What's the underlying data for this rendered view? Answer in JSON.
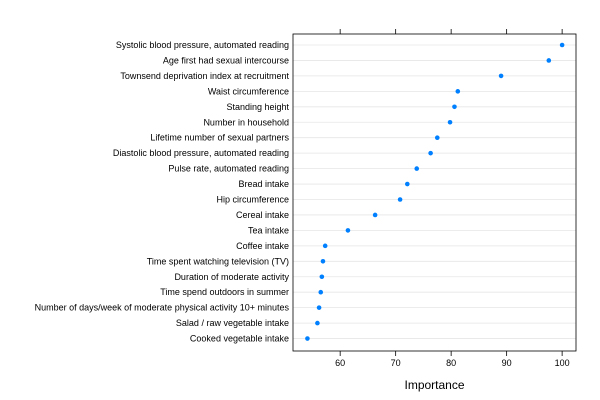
{
  "chart_data": {
    "type": "scatter",
    "xlabel": "Importance",
    "ylabel": "",
    "xlim": [
      51.5,
      102.5
    ],
    "xticks": [
      "60",
      "70",
      "80",
      "90",
      "100"
    ],
    "grid": true,
    "point_color": "#0080ff",
    "grid_color": "#e6e6e6",
    "categories": [
      "Systolic blood pressure, automated reading",
      "Age first had sexual intercourse",
      "Townsend deprivation index at recruitment",
      "Waist circumference",
      "Standing height",
      "Number in household",
      "Lifetime number of sexual partners",
      "Diastolic blood pressure, automated reading",
      "Pulse rate, automated reading",
      "Bread intake",
      "Hip circumference",
      "Cereal intake",
      "Tea intake",
      "Coffee intake",
      "Time spent watching television (TV)",
      "Duration of moderate activity",
      "Time spend outdoors in summer",
      "Number of days/week of moderate physical activity 10+ minutes",
      "Salad / raw vegetable intake",
      "Cooked vegetable intake"
    ],
    "values": [
      100,
      97.6,
      89,
      81.2,
      80.6,
      79.8,
      77.5,
      76.3,
      73.8,
      72.1,
      70.8,
      66.3,
      61.4,
      57.3,
      56.9,
      56.7,
      56.5,
      56.2,
      55.9,
      54.1
    ]
  }
}
